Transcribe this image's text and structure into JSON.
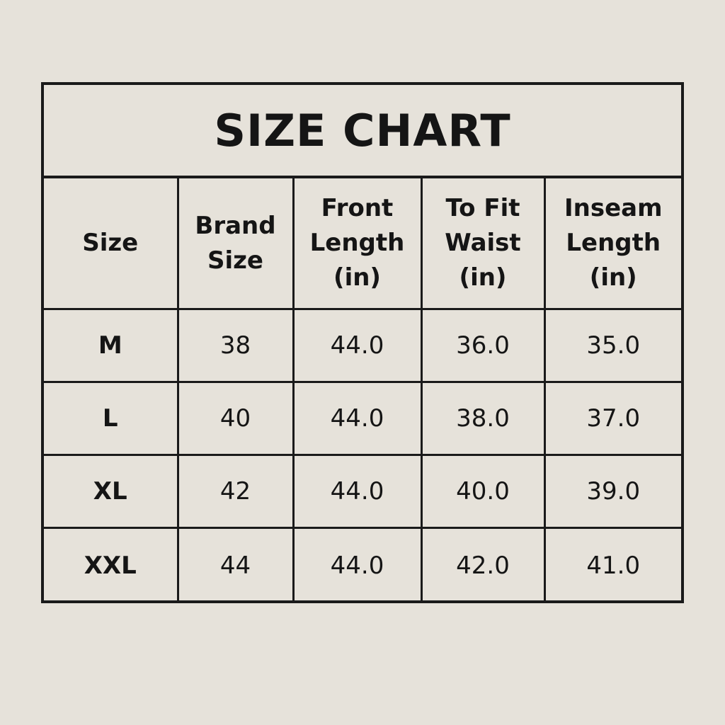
{
  "title": "SIZE CHART",
  "headers": [
    "Size",
    "Brand\nSize",
    "Front\nLength\n(in)",
    "To Fit\nWaist\n(in)",
    "Inseam\nLength\n(in)"
  ],
  "rows": [
    [
      "M",
      "38",
      "44.0",
      "36.0",
      "35.0"
    ],
    [
      "L",
      "40",
      "44.0",
      "38.0",
      "37.0"
    ],
    [
      "XL",
      "42",
      "44.0",
      "40.0",
      "39.0"
    ],
    [
      "XXL",
      "44",
      "44.0",
      "42.0",
      "41.0"
    ]
  ],
  "colors": {
    "background": "#e6e2da",
    "ink": "#1a1a1a"
  }
}
